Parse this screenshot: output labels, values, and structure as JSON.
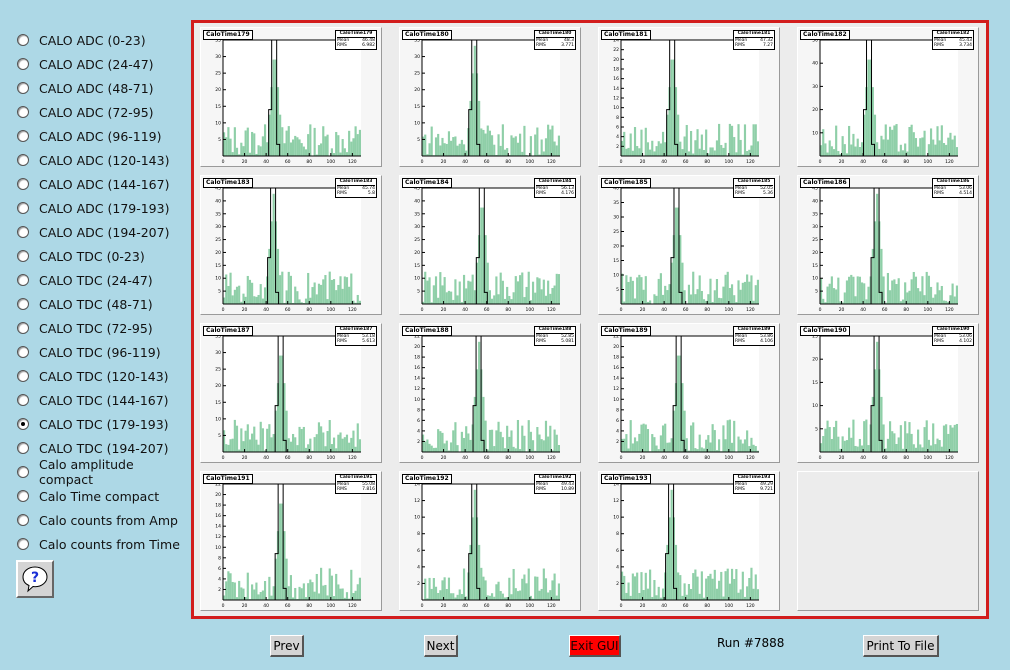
{
  "sidebar": {
    "options": [
      {
        "label": "CALO ADC (0-23)",
        "checked": false
      },
      {
        "label": "CALO ADC (24-47)",
        "checked": false
      },
      {
        "label": "CALO ADC (48-71)",
        "checked": false
      },
      {
        "label": "CALO ADC (72-95)",
        "checked": false
      },
      {
        "label": "CALO ADC (96-119)",
        "checked": false
      },
      {
        "label": "CALO ADC (120-143)",
        "checked": false
      },
      {
        "label": "CALO ADC (144-167)",
        "checked": false
      },
      {
        "label": "CALO ADC (179-193)",
        "checked": false
      },
      {
        "label": "CALO ADC (194-207)",
        "checked": false
      },
      {
        "label": "CALO TDC (0-23)",
        "checked": false
      },
      {
        "label": "CALO TDC (24-47)",
        "checked": false
      },
      {
        "label": "CALO TDC (48-71)",
        "checked": false
      },
      {
        "label": "CALO TDC (72-95)",
        "checked": false
      },
      {
        "label": "CALO TDC (96-119)",
        "checked": false
      },
      {
        "label": "CALO TDC (120-143)",
        "checked": false
      },
      {
        "label": "CALO TDC (144-167)",
        "checked": false
      },
      {
        "label": "CALO TDC (179-193)",
        "checked": true
      },
      {
        "label": "CALO TDC (194-207)",
        "checked": false
      },
      {
        "label": "Calo amplitude compact",
        "checked": false
      },
      {
        "label": "Calo Time compact",
        "checked": false
      },
      {
        "label": "Calo counts from Amp",
        "checked": false
      },
      {
        "label": "Calo counts from Time",
        "checked": false
      }
    ],
    "help_icon": "question-mark-icon"
  },
  "canvas": {
    "accent_color": "#d21d1d",
    "fill_color": "#8fcfa8",
    "x_ticks": [
      "0",
      "20",
      "40",
      "60",
      "80",
      "100",
      "120"
    ],
    "histograms": [
      {
        "title": "CaloTime179",
        "stat_name": "CaloTime179",
        "mean": "46.48",
        "rms": "6.982",
        "peak_bin": 47,
        "ymax": 35,
        "yticks": [
          "5",
          "10",
          "15",
          "20",
          "25",
          "30",
          "35"
        ]
      },
      {
        "title": "CaloTime180",
        "stat_name": "CaloTime180",
        "mean": "48.3",
        "rms": "3.771",
        "peak_bin": 48,
        "ymax": 35,
        "yticks": [
          "5",
          "10",
          "15",
          "20",
          "25",
          "30",
          "35"
        ]
      },
      {
        "title": "CaloTime181",
        "stat_name": "CaloTime181",
        "mean": "47.32",
        "rms": "7.27",
        "peak_bin": 47,
        "ymax": 24,
        "yticks": [
          "2",
          "4",
          "6",
          "8",
          "10",
          "12",
          "14",
          "16",
          "18",
          "20",
          "22",
          "24"
        ]
      },
      {
        "title": "CaloTime182",
        "stat_name": "CaloTime182",
        "mean": "45.43",
        "rms": "3.734",
        "peak_bin": 45,
        "ymax": 50,
        "yticks": [
          "10",
          "20",
          "30",
          "40",
          "50"
        ]
      },
      {
        "title": "CaloTime183",
        "stat_name": "CaloTime183",
        "mean": "45.74",
        "rms": "5.8",
        "peak_bin": 46,
        "ymax": 45,
        "yticks": [
          "5",
          "10",
          "15",
          "20",
          "25",
          "30",
          "35",
          "40",
          "45"
        ]
      },
      {
        "title": "CaloTime184",
        "stat_name": "CaloTime184",
        "mean": "56.13",
        "rms": "4.176",
        "peak_bin": 55,
        "ymax": 45,
        "yticks": [
          "5",
          "10",
          "15",
          "20",
          "25",
          "30",
          "35",
          "40",
          "45"
        ]
      },
      {
        "title": "CaloTime185",
        "stat_name": "CaloTime185",
        "mean": "52.05",
        "rms": "5.36",
        "peak_bin": 51,
        "ymax": 40,
        "yticks": [
          "5",
          "10",
          "15",
          "20",
          "25",
          "30",
          "35",
          "40"
        ]
      },
      {
        "title": "CaloTime186",
        "stat_name": "CaloTime186",
        "mean": "53.06",
        "rms": "4.514",
        "peak_bin": 52,
        "ymax": 45,
        "yticks": [
          "5",
          "10",
          "15",
          "20",
          "25",
          "30",
          "35",
          "40",
          "45"
        ]
      },
      {
        "title": "CaloTime187",
        "stat_name": "CaloTime187",
        "mean": "53.18",
        "rms": "5.613",
        "peak_bin": 53,
        "ymax": 35,
        "yticks": [
          "5",
          "10",
          "15",
          "20",
          "25",
          "30",
          "35"
        ]
      },
      {
        "title": "CaloTime188",
        "stat_name": "CaloTime188",
        "mean": "52.85",
        "rms": "5.081",
        "peak_bin": 52,
        "ymax": 22,
        "yticks": [
          "2",
          "4",
          "6",
          "8",
          "10",
          "12",
          "14",
          "16",
          "18",
          "20",
          "22"
        ]
      },
      {
        "title": "CaloTime189",
        "stat_name": "CaloTime189",
        "mean": "53.86",
        "rms": "4.106",
        "peak_bin": 53,
        "ymax": 22,
        "yticks": [
          "2",
          "4",
          "6",
          "8",
          "10",
          "12",
          "14",
          "16",
          "18",
          "20",
          "22"
        ]
      },
      {
        "title": "CaloTime190",
        "stat_name": "CaloTime190",
        "mean": "53.06",
        "rms": "4.102",
        "peak_bin": 52,
        "ymax": 25,
        "yticks": [
          "5",
          "10",
          "15",
          "20",
          "25"
        ]
      },
      {
        "title": "CaloTime191",
        "stat_name": "CaloTime191",
        "mean": "55.08",
        "rms": "7.816",
        "peak_bin": 53,
        "ymax": 22,
        "yticks": [
          "2",
          "4",
          "6",
          "8",
          "10",
          "12",
          "14",
          "16",
          "18",
          "20",
          "22"
        ]
      },
      {
        "title": "CaloTime192",
        "stat_name": "CaloTime192",
        "mean": "49.43",
        "rms": "10.89",
        "peak_bin": 48,
        "ymax": 14,
        "yticks": [
          "2",
          "4",
          "6",
          "8",
          "10",
          "12",
          "14"
        ]
      },
      {
        "title": "CaloTime193",
        "stat_name": "CaloTime193",
        "mean": "49.29",
        "rms": "9.721",
        "peak_bin": 46,
        "ymax": 14,
        "yticks": [
          "2",
          "4",
          "6",
          "8",
          "10",
          "12",
          "14"
        ]
      }
    ]
  },
  "buttons": {
    "prev_label": "Prev",
    "next_label": "Next",
    "exit_label": "Exit GUI",
    "print_label": "Print To File",
    "exit_color": "#ff0000"
  },
  "run_label": "Run #7888"
}
